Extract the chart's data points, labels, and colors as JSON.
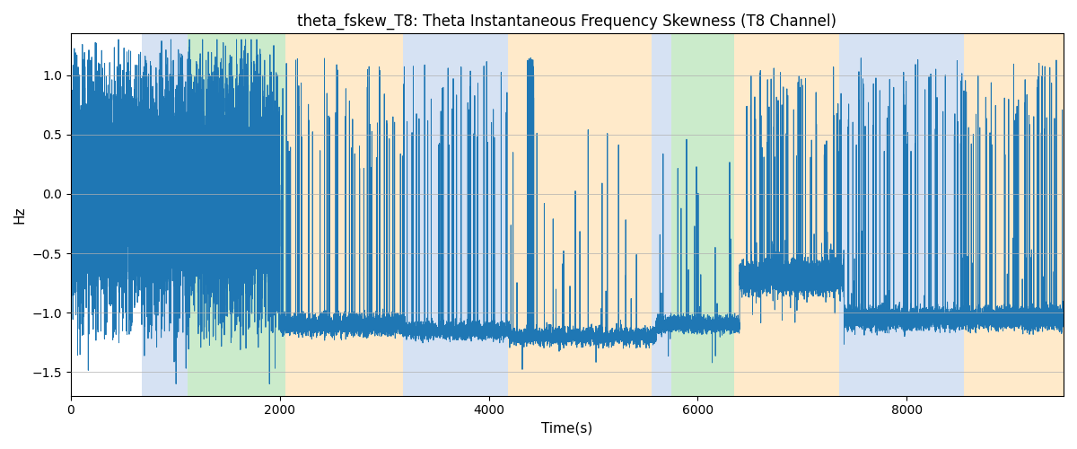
{
  "title": "theta_fskew_T8: Theta Instantaneous Frequency Skewness (T8 Channel)",
  "xlabel": "Time(s)",
  "ylabel": "Hz",
  "xlim": [
    0,
    9500
  ],
  "ylim": [
    -1.7,
    1.35
  ],
  "line_color": "#1f77b4",
  "line_width": 0.7,
  "background_color": "#ffffff",
  "grid_color": "#b0b0b0",
  "regions": [
    {
      "start": 680,
      "end": 1120,
      "color": "#aec6e8",
      "alpha": 0.5
    },
    {
      "start": 1120,
      "end": 2050,
      "color": "#98d898",
      "alpha": 0.5
    },
    {
      "start": 2050,
      "end": 3180,
      "color": "#ffd9a0",
      "alpha": 0.55
    },
    {
      "start": 3180,
      "end": 4180,
      "color": "#aec6e8",
      "alpha": 0.5
    },
    {
      "start": 4180,
      "end": 5560,
      "color": "#ffd9a0",
      "alpha": 0.55
    },
    {
      "start": 5560,
      "end": 5750,
      "color": "#aec6e8",
      "alpha": 0.5
    },
    {
      "start": 5750,
      "end": 6350,
      "color": "#98d898",
      "alpha": 0.5
    },
    {
      "start": 6350,
      "end": 7350,
      "color": "#ffd9a0",
      "alpha": 0.55
    },
    {
      "start": 7350,
      "end": 7600,
      "color": "#aec6e8",
      "alpha": 0.5
    },
    {
      "start": 7600,
      "end": 8550,
      "color": "#aec6e8",
      "alpha": 0.5
    },
    {
      "start": 8550,
      "end": 9500,
      "color": "#ffd9a0",
      "alpha": 0.55
    }
  ],
  "seed": 1234,
  "figsize": [
    12.0,
    5.0
  ],
  "dpi": 100
}
